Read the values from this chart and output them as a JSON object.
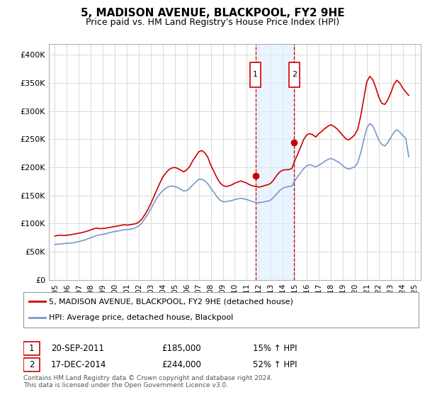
{
  "title": "5, MADISON AVENUE, BLACKPOOL, FY2 9HE",
  "subtitle": "Price paid vs. HM Land Registry's House Price Index (HPI)",
  "title_fontsize": 11,
  "subtitle_fontsize": 9.5,
  "red_color": "#cc0000",
  "blue_color": "#7799cc",
  "shade_color": "#ddeeff",
  "background_color": "#ffffff",
  "grid_color": "#cccccc",
  "legend_label_red": "5, MADISON AVENUE, BLACKPOOL, FY2 9HE (detached house)",
  "legend_label_blue": "HPI: Average price, detached house, Blackpool",
  "footer_text": "Contains HM Land Registry data © Crown copyright and database right 2024.\nThis data is licensed under the Open Government Licence v3.0.",
  "sale1_date": "20-SEP-2011",
  "sale1_price": "£185,000",
  "sale1_hpi": "15% ↑ HPI",
  "sale2_date": "17-DEC-2014",
  "sale2_price": "£244,000",
  "sale2_hpi": "52% ↑ HPI",
  "marker1_x": 2011.72,
  "marker1_y": 185000,
  "marker2_x": 2014.96,
  "marker2_y": 244000,
  "shade_x1": 2011.72,
  "shade_x2": 2014.96,
  "ylim": [
    0,
    420000
  ],
  "xlim": [
    1994.5,
    2025.5
  ],
  "yticks": [
    0,
    50000,
    100000,
    150000,
    200000,
    250000,
    300000,
    350000,
    400000
  ],
  "ytick_labels": [
    "£0",
    "£50K",
    "£100K",
    "£150K",
    "£200K",
    "£250K",
    "£300K",
    "£350K",
    "£400K"
  ],
  "xticks": [
    1995,
    1996,
    1997,
    1998,
    1999,
    2000,
    2001,
    2002,
    2003,
    2004,
    2005,
    2006,
    2007,
    2008,
    2009,
    2010,
    2011,
    2012,
    2013,
    2014,
    2015,
    2016,
    2017,
    2018,
    2019,
    2020,
    2021,
    2022,
    2023,
    2024,
    2025
  ],
  "red_x": [
    1995.0,
    1995.25,
    1995.5,
    1995.75,
    1996.0,
    1996.25,
    1996.5,
    1996.75,
    1997.0,
    1997.25,
    1997.5,
    1997.75,
    1998.0,
    1998.25,
    1998.5,
    1998.75,
    1999.0,
    1999.25,
    1999.5,
    1999.75,
    2000.0,
    2000.25,
    2000.5,
    2000.75,
    2001.0,
    2001.25,
    2001.5,
    2001.75,
    2002.0,
    2002.25,
    2002.5,
    2002.75,
    2003.0,
    2003.25,
    2003.5,
    2003.75,
    2004.0,
    2004.25,
    2004.5,
    2004.75,
    2005.0,
    2005.25,
    2005.5,
    2005.75,
    2006.0,
    2006.25,
    2006.5,
    2006.75,
    2007.0,
    2007.25,
    2007.5,
    2007.75,
    2008.0,
    2008.25,
    2008.5,
    2008.75,
    2009.0,
    2009.25,
    2009.5,
    2009.75,
    2010.0,
    2010.25,
    2010.5,
    2010.75,
    2011.0,
    2011.25,
    2011.5,
    2011.75,
    2012.0,
    2012.25,
    2012.5,
    2012.75,
    2013.0,
    2013.25,
    2013.5,
    2013.75,
    2014.0,
    2014.25,
    2014.5,
    2014.75,
    2015.0,
    2015.25,
    2015.5,
    2015.75,
    2016.0,
    2016.25,
    2016.5,
    2016.75,
    2017.0,
    2017.25,
    2017.5,
    2017.75,
    2018.0,
    2018.25,
    2018.5,
    2018.75,
    2019.0,
    2019.25,
    2019.5,
    2019.75,
    2020.0,
    2020.25,
    2020.5,
    2020.75,
    2021.0,
    2021.25,
    2021.5,
    2021.75,
    2022.0,
    2022.25,
    2022.5,
    2022.75,
    2023.0,
    2023.25,
    2023.5,
    2023.75,
    2024.0,
    2024.25,
    2024.5
  ],
  "red_y": [
    78000,
    79000,
    79500,
    79000,
    79500,
    80000,
    81000,
    82000,
    83000,
    84000,
    85500,
    87000,
    89000,
    91000,
    92000,
    91000,
    91500,
    92000,
    93000,
    94000,
    95000,
    96000,
    97000,
    98000,
    97500,
    98000,
    99000,
    100000,
    103000,
    108000,
    116000,
    125000,
    136000,
    148000,
    160000,
    172000,
    183000,
    190000,
    196000,
    199000,
    200000,
    198000,
    195000,
    192000,
    196000,
    202000,
    212000,
    220000,
    228000,
    230000,
    226000,
    218000,
    204000,
    193000,
    182000,
    173000,
    168000,
    166000,
    167000,
    169000,
    172000,
    174000,
    176000,
    174000,
    172000,
    169000,
    167000,
    166000,
    165000,
    166000,
    168000,
    169000,
    172000,
    178000,
    186000,
    192000,
    195000,
    196000,
    196000,
    198000,
    212000,
    224000,
    237000,
    250000,
    258000,
    260000,
    258000,
    254000,
    260000,
    264000,
    269000,
    273000,
    276000,
    273000,
    269000,
    263000,
    257000,
    251000,
    249000,
    253000,
    258000,
    268000,
    292000,
    322000,
    352000,
    362000,
    356000,
    342000,
    325000,
    314000,
    312000,
    320000,
    332000,
    347000,
    355000,
    350000,
    341000,
    334000,
    328000
  ],
  "blue_x": [
    1995.0,
    1995.25,
    1995.5,
    1995.75,
    1996.0,
    1996.25,
    1996.5,
    1996.75,
    1997.0,
    1997.25,
    1997.5,
    1997.75,
    1998.0,
    1998.25,
    1998.5,
    1998.75,
    1999.0,
    1999.25,
    1999.5,
    1999.75,
    2000.0,
    2000.25,
    2000.5,
    2000.75,
    2001.0,
    2001.25,
    2001.5,
    2001.75,
    2002.0,
    2002.25,
    2002.5,
    2002.75,
    2003.0,
    2003.25,
    2003.5,
    2003.75,
    2004.0,
    2004.25,
    2004.5,
    2004.75,
    2005.0,
    2005.25,
    2005.5,
    2005.75,
    2006.0,
    2006.25,
    2006.5,
    2006.75,
    2007.0,
    2007.25,
    2007.5,
    2007.75,
    2008.0,
    2008.25,
    2008.5,
    2008.75,
    2009.0,
    2009.25,
    2009.5,
    2009.75,
    2010.0,
    2010.25,
    2010.5,
    2010.75,
    2011.0,
    2011.25,
    2011.5,
    2011.75,
    2012.0,
    2012.25,
    2012.5,
    2012.75,
    2013.0,
    2013.25,
    2013.5,
    2013.75,
    2014.0,
    2014.25,
    2014.5,
    2014.75,
    2015.0,
    2015.25,
    2015.5,
    2015.75,
    2016.0,
    2016.25,
    2016.5,
    2016.75,
    2017.0,
    2017.25,
    2017.5,
    2017.75,
    2018.0,
    2018.25,
    2018.5,
    2018.75,
    2019.0,
    2019.25,
    2019.5,
    2019.75,
    2020.0,
    2020.25,
    2020.5,
    2020.75,
    2021.0,
    2021.25,
    2021.5,
    2021.75,
    2022.0,
    2022.25,
    2022.5,
    2022.75,
    2023.0,
    2023.25,
    2023.5,
    2023.75,
    2024.0,
    2024.25,
    2024.5
  ],
  "blue_y": [
    63000,
    63500,
    64000,
    64500,
    65000,
    65500,
    66000,
    67000,
    68000,
    69500,
    71000,
    73000,
    75000,
    77000,
    79000,
    80000,
    81000,
    82000,
    83500,
    85000,
    86000,
    87000,
    88000,
    89000,
    89500,
    90000,
    91000,
    93000,
    96000,
    101000,
    109000,
    117000,
    126000,
    136000,
    146000,
    153000,
    159000,
    163000,
    166000,
    167000,
    166000,
    164000,
    161000,
    158000,
    159000,
    163000,
    169000,
    174000,
    179000,
    179000,
    176000,
    171000,
    163000,
    156000,
    148000,
    142000,
    139000,
    139000,
    140000,
    141000,
    143000,
    144000,
    145000,
    144000,
    143000,
    141000,
    139000,
    138000,
    137000,
    138000,
    139000,
    140000,
    142000,
    147000,
    153000,
    159000,
    163000,
    165000,
    166000,
    167000,
    176000,
    184000,
    191000,
    198000,
    203000,
    205000,
    203000,
    201000,
    204000,
    207000,
    211000,
    214000,
    216000,
    214000,
    211000,
    208000,
    203000,
    199000,
    197000,
    199000,
    201000,
    209000,
    226000,
    249000,
    270000,
    278000,
    274000,
    262000,
    248000,
    241000,
    238000,
    244000,
    253000,
    262000,
    267000,
    263000,
    257000,
    252000,
    219000
  ]
}
